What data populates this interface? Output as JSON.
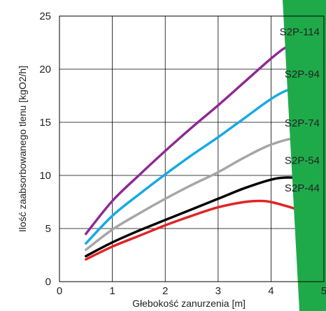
{
  "chart_data": {
    "type": "line",
    "xlabel": "Głebokość zanurzenia [m]",
    "ylabel": "Ilość zaabsorbowanego tlenu [kgO2/h]",
    "xlim": [
      0,
      5
    ],
    "ylim": [
      0,
      25
    ],
    "x_ticks": [
      "0",
      "1",
      "2",
      "3",
      "4",
      "5"
    ],
    "y_ticks": [
      "0",
      "5",
      "10",
      "15",
      "20",
      "25"
    ],
    "grid": true,
    "legend": "labels at line ends",
    "series": [
      {
        "name": "S2P-114",
        "color": "#8e2a93",
        "x": [
          0.5,
          1,
          1.5,
          2,
          2.5,
          3,
          3.5,
          4,
          4.3,
          4.5,
          5
        ],
        "y": [
          4.5,
          7.6,
          10.0,
          12.3,
          14.5,
          16.6,
          18.8,
          21.0,
          22.1,
          22.2,
          21.2
        ]
      },
      {
        "name": "S2P-94",
        "color": "#18a9e6",
        "x": [
          0.5,
          1,
          1.5,
          2,
          2.5,
          3,
          3.5,
          4,
          4.3,
          4.5,
          5
        ],
        "y": [
          3.6,
          6.2,
          8.2,
          10.1,
          11.9,
          13.6,
          15.4,
          17.2,
          18.0,
          18.1,
          17.1
        ]
      },
      {
        "name": "S2P-74",
        "color": "#a6a6a6",
        "x": [
          0.5,
          1,
          1.5,
          2,
          2.5,
          3,
          3.5,
          4,
          4.5,
          5
        ],
        "y": [
          3.0,
          4.9,
          6.4,
          7.8,
          9.1,
          10.3,
          11.7,
          12.9,
          13.5,
          13.0
        ]
      },
      {
        "name": "S2P-54",
        "color": "#000000",
        "x": [
          0.5,
          1,
          1.5,
          2,
          2.5,
          3,
          3.5,
          4,
          4.3,
          4.6,
          5
        ],
        "y": [
          2.4,
          3.7,
          4.8,
          5.8,
          6.8,
          7.8,
          8.8,
          9.6,
          9.8,
          9.7,
          9.2
        ]
      },
      {
        "name": "S2P-44",
        "color": "#e02424",
        "x": [
          0.5,
          1,
          1.5,
          2,
          2.5,
          3,
          3.5,
          3.8,
          4,
          4.3,
          4.5
        ],
        "y": [
          2.1,
          3.3,
          4.3,
          5.3,
          6.2,
          7.0,
          7.5,
          7.6,
          7.5,
          7.1,
          6.8
        ]
      }
    ]
  }
}
